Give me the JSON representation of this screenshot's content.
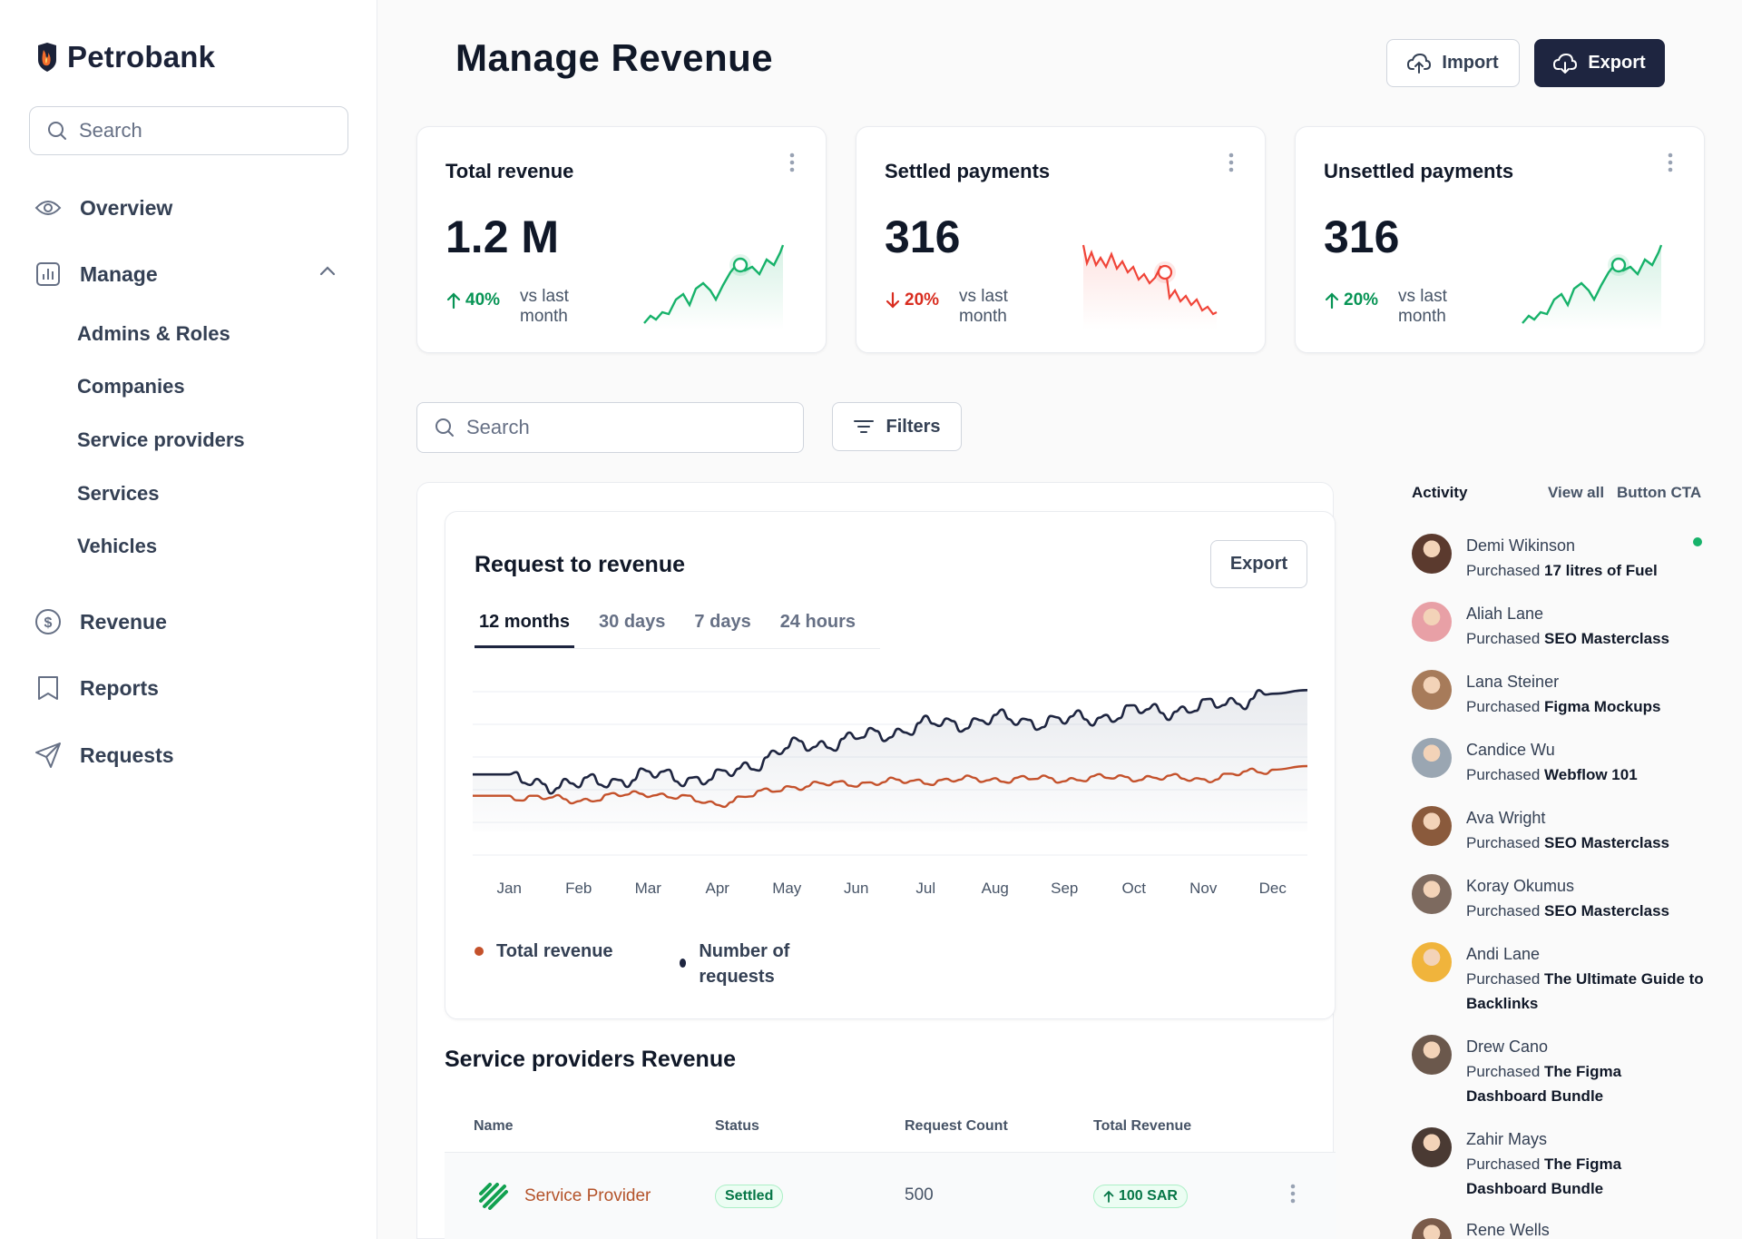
{
  "app": {
    "name": "Petrobank"
  },
  "sidebar": {
    "search_placeholder": "Search",
    "overview": "Overview",
    "manage": "Manage",
    "manage_items": [
      "Admins & Roles",
      "Companies",
      "Service providers",
      "Services",
      "Vehicles"
    ],
    "revenue": "Revenue",
    "reports": "Reports",
    "requests": "Requests"
  },
  "header": {
    "title": "Manage Revenue",
    "import_label": "Import",
    "export_label": "Export"
  },
  "stats": [
    {
      "title": "Total revenue",
      "value": "1.2 M",
      "change": "40%",
      "direction": "up",
      "vs": "vs last month",
      "color": "#079455"
    },
    {
      "title": "Settled payments",
      "value": "316",
      "change": "20%",
      "direction": "down",
      "vs": "vs last month",
      "color": "#d92d20"
    },
    {
      "title": "Unsettled payments",
      "value": "316",
      "change": "20%",
      "direction": "up",
      "vs": "vs last month",
      "color": "#079455"
    }
  ],
  "filters": {
    "search_placeholder": "Search",
    "filters_label": "Filters"
  },
  "chart_card": {
    "title": "Request to revenue",
    "export_label": "Export",
    "tabs": [
      "12 months",
      "30 days",
      "7 days",
      "24 hours"
    ],
    "active_tab": "12 months"
  },
  "chart_data": {
    "type": "line",
    "categories": [
      "Jan",
      "Feb",
      "Mar",
      "Apr",
      "May",
      "Jun",
      "Jul",
      "Aug",
      "Sep",
      "Oct",
      "Nov",
      "Dec"
    ],
    "series": [
      {
        "name": "Total revenue",
        "color": "#c4512b",
        "values": [
          22,
          20,
          24,
          18,
          27,
          29,
          30,
          31,
          31,
          32,
          31,
          36
        ]
      },
      {
        "name": "Number of requests",
        "color": "#1e2540",
        "values": [
          30,
          28,
          33,
          31,
          47,
          52,
          59,
          62,
          61,
          66,
          68,
          76
        ]
      }
    ],
    "grid": true
  },
  "legend": {
    "total_revenue": "Total revenue",
    "requests": "Number of requests"
  },
  "table": {
    "title": "Service providers Revenue",
    "columns": [
      "Name",
      "Status",
      "Request Count",
      "Total Revenue"
    ],
    "rows": [
      {
        "name": "Service Provider",
        "status": "Settled",
        "request_count": "500",
        "total_revenue": "100 SAR"
      }
    ]
  },
  "activity": {
    "title": "Activity",
    "view_all": "View all",
    "button_cta": "Button CTA",
    "items": [
      {
        "name": "Demi Wikinson",
        "action": "Purchased",
        "item": "17 litres of Fuel",
        "avatar_color": "#5b3a2e"
      },
      {
        "name": "Aliah Lane",
        "action": "Purchased",
        "item": "SEO Masterclass",
        "avatar_color": "#e8a0a6"
      },
      {
        "name": "Lana Steiner",
        "action": "Purchased",
        "item": "Figma Mockups",
        "avatar_color": "#a77b5a"
      },
      {
        "name": "Candice Wu",
        "action": "Purchased",
        "item": "Webflow 101",
        "avatar_color": "#9aa6b2"
      },
      {
        "name": "Ava Wright",
        "action": "Purchased",
        "item": "SEO Masterclass",
        "avatar_color": "#8a5a3c"
      },
      {
        "name": "Koray Okumus",
        "action": "Purchased",
        "item": "SEO Masterclass",
        "avatar_color": "#7d6a5f"
      },
      {
        "name": "Andi Lane",
        "action": "Purchased",
        "item": "The Ultimate Guide to Backlinks",
        "avatar_color": "#f0b43c"
      },
      {
        "name": "Drew Cano",
        "action": "Purchased",
        "item": "The Figma Dashboard Bundle",
        "avatar_color": "#6b584c"
      },
      {
        "name": "Zahir Mays",
        "action": "Purchased",
        "item": "The Figma Dashboard Bundle",
        "avatar_color": "#4a3a33"
      },
      {
        "name": "Rene Wells",
        "action": "",
        "item": "",
        "avatar_color": "#7a5b4a"
      }
    ]
  }
}
